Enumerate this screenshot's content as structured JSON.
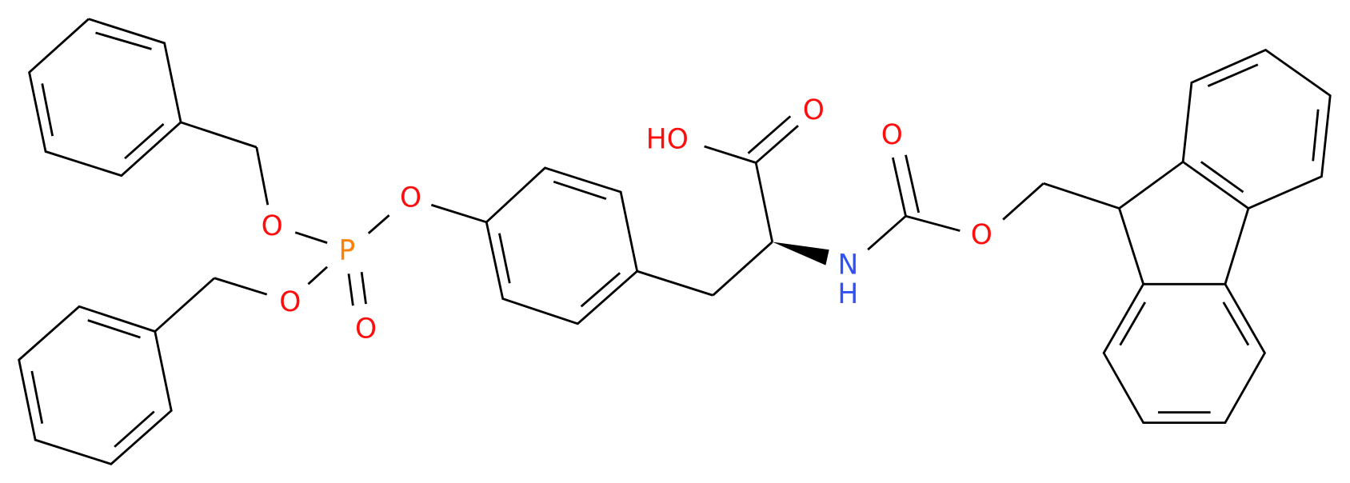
{
  "atoms": [
    {
      "label": "O"
    },
    {
      "label": "P"
    },
    {
      "label": "O"
    },
    {
      "label": "O"
    },
    {
      "label": "O"
    },
    {
      "label": "HO"
    },
    {
      "label": "O"
    },
    {
      "label": "N"
    },
    {
      "label": "H"
    },
    {
      "label": "O"
    },
    {
      "label": "O"
    }
  ]
}
